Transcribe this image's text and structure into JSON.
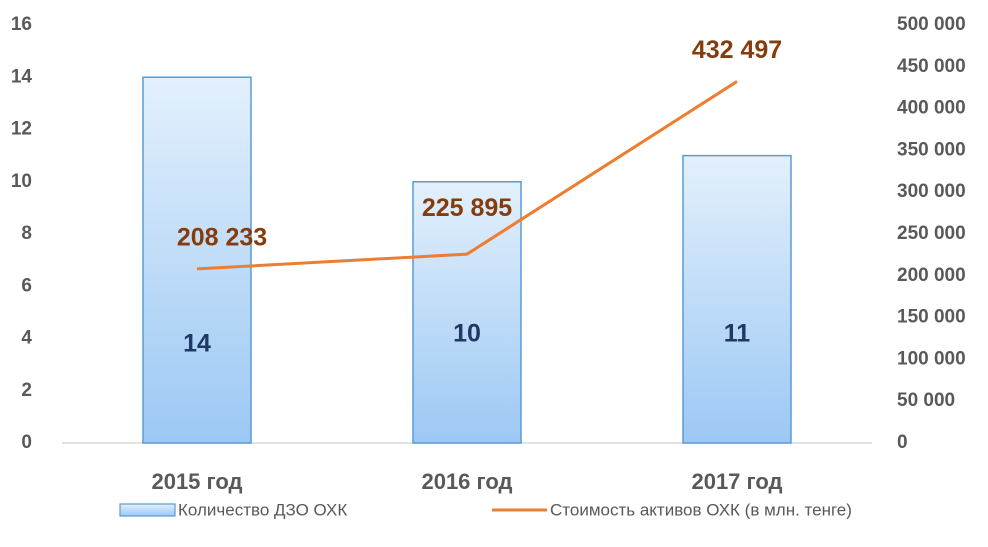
{
  "chart_data": {
    "type": "bar",
    "categories": [
      "2015 год",
      "2016 год",
      "2017 год"
    ],
    "series": [
      {
        "name": "Количество ДЗО ОХК",
        "type": "bar",
        "color": "#5b9bd5",
        "values": [
          14,
          10,
          11
        ]
      },
      {
        "name": "Стоимость активов ОХК (в млн. тенге)",
        "type": "line",
        "color": "#ed7d31",
        "axis": "y2",
        "values": [
          208233,
          225895,
          432497
        ],
        "value_labels": [
          "208 233",
          "225 895",
          "432 497"
        ]
      }
    ],
    "ylim": [
      0,
      16
    ],
    "yticks": [
      0,
      2,
      4,
      6,
      8,
      10,
      12,
      14,
      16
    ],
    "y2lim": [
      0,
      500000
    ],
    "y2ticks": [
      0,
      {
        "value": 50000,
        "label": "50 000"
      },
      {
        "value": 100000,
        "label": "100 000"
      },
      {
        "value": 150000,
        "label": "150 000"
      },
      {
        "value": 200000,
        "label": "200 000"
      },
      {
        "value": 250000,
        "label": "250 000"
      },
      {
        "value": 300000,
        "label": "300 000"
      },
      {
        "value": 350000,
        "label": "350 000"
      },
      {
        "value": 400000,
        "label": "400 000"
      },
      {
        "value": 450000,
        "label": "450 000"
      },
      {
        "value": 500000,
        "label": "500 000"
      }
    ],
    "grid": false,
    "legend": "bottom"
  }
}
